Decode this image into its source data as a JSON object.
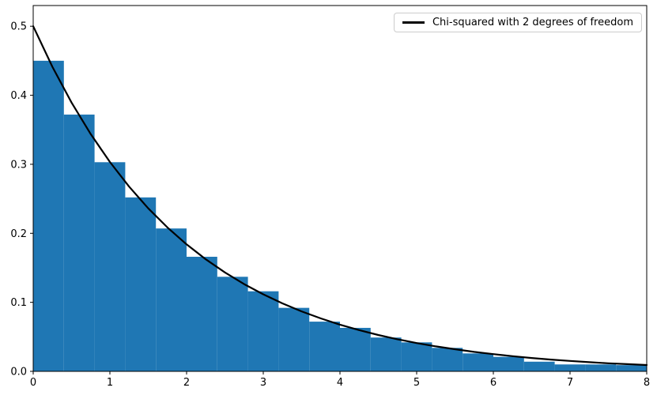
{
  "figure": {
    "background": "#ffffff",
    "frame_color": "#000000"
  },
  "chart_data": {
    "type": "bar",
    "subtype": "histogram_with_line_overlay",
    "title": "",
    "xlabel": "",
    "ylabel": "",
    "xlim": [
      0,
      8
    ],
    "ylim": [
      0,
      0.53
    ],
    "grid": false,
    "x_ticks": [
      "0",
      "1",
      "2",
      "3",
      "4",
      "5",
      "6",
      "7",
      "8"
    ],
    "y_ticks": [
      "0.0",
      "0.1",
      "0.2",
      "0.3",
      "0.4",
      "0.5"
    ],
    "histogram": {
      "color": "#1f77b4",
      "bin_width": 0.4,
      "bin_edges": [
        0,
        0.4,
        0.8,
        1.2,
        1.6,
        2.0,
        2.4,
        2.8,
        3.2,
        3.6,
        4.0,
        4.4,
        4.8,
        5.2,
        5.6,
        6.0,
        6.4,
        6.8,
        7.2,
        7.6,
        8.0
      ],
      "densities": [
        0.45,
        0.372,
        0.303,
        0.252,
        0.207,
        0.166,
        0.137,
        0.116,
        0.092,
        0.072,
        0.063,
        0.049,
        0.042,
        0.034,
        0.026,
        0.021,
        0.014,
        0.01,
        0.01,
        0.009
      ]
    },
    "line": {
      "color": "#000000",
      "width": 2.2,
      "points": [
        [
          0,
          0.5
        ],
        [
          0.25,
          0.4412
        ],
        [
          0.5,
          0.3894
        ],
        [
          0.75,
          0.3436
        ],
        [
          1.0,
          0.3033
        ],
        [
          1.25,
          0.2676
        ],
        [
          1.5,
          0.2362
        ],
        [
          1.75,
          0.2084
        ],
        [
          2.0,
          0.1839
        ],
        [
          2.25,
          0.1623
        ],
        [
          2.5,
          0.1433
        ],
        [
          2.75,
          0.1264
        ],
        [
          3.0,
          0.1116
        ],
        [
          3.25,
          0.0984
        ],
        [
          3.5,
          0.0869
        ],
        [
          3.75,
          0.0767
        ],
        [
          4.0,
          0.0677
        ],
        [
          4.25,
          0.0597
        ],
        [
          4.5,
          0.0527
        ],
        [
          4.75,
          0.0465
        ],
        [
          5.0,
          0.041
        ],
        [
          5.25,
          0.0362
        ],
        [
          5.5,
          0.032
        ],
        [
          5.75,
          0.0282
        ],
        [
          6.0,
          0.0249
        ],
        [
          6.25,
          0.022
        ],
        [
          6.5,
          0.0194
        ],
        [
          6.75,
          0.0171
        ],
        [
          7.0,
          0.0151
        ],
        [
          7.25,
          0.0133
        ],
        [
          7.5,
          0.0117
        ],
        [
          7.75,
          0.0104
        ],
        [
          8.0,
          0.0092
        ]
      ]
    },
    "legend": {
      "position": "upper right",
      "entries": [
        {
          "label": "Chi-squared with 2 degrees of freedom",
          "color": "#000000"
        }
      ]
    }
  }
}
